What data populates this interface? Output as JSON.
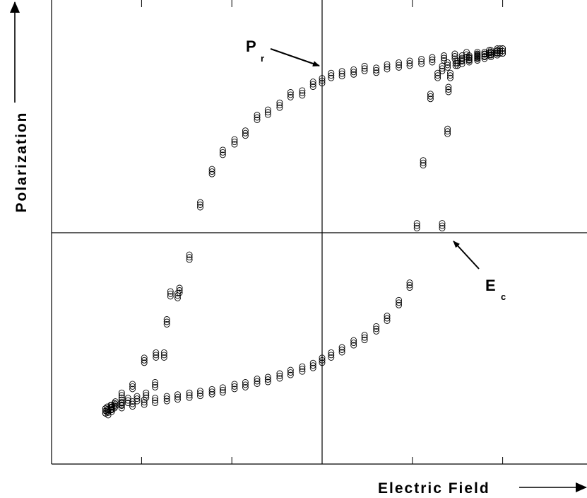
{
  "chart_data": {
    "type": "scatter",
    "title": "",
    "xlabel": "Electric Field",
    "ylabel": "Polarization",
    "xlim": [
      -3,
      3
    ],
    "ylim": [
      -1.3,
      1.2
    ],
    "grid": false,
    "legend": "none",
    "marker": "open-circle",
    "colors": {
      "marker": "#000000",
      "axes": "#000000",
      "background": "#ffffff"
    },
    "annotations": [
      {
        "letter": "P",
        "sub": "r",
        "target": [
          0,
          0.88
        ]
      },
      {
        "letter": "E",
        "sub": "c",
        "target": [
          1.33,
          0
        ]
      }
    ],
    "series": [
      {
        "name": "",
        "branch": "upper",
        "x": [
          -2.4,
          -2.37,
          -2.33,
          -2.29,
          -2.22,
          -2.1,
          -1.97,
          -1.84,
          -1.72,
          -1.6,
          -1.47,
          -1.35,
          -1.22,
          -1.1,
          -0.97,
          -0.85,
          -0.72,
          -0.6,
          -0.47,
          -0.35,
          -0.22,
          -0.1,
          0.0,
          0.1,
          0.22,
          0.35,
          0.47,
          0.6,
          0.72,
          0.85,
          0.97,
          1.1,
          1.22,
          1.35,
          1.47,
          1.6,
          1.72,
          1.85,
          1.97,
          2.0,
          1.94,
          1.87,
          1.8,
          1.72,
          1.63,
          1.55,
          1.5,
          1.42,
          1.4,
          1.39,
          1.33
        ],
        "y": [
          -1.02,
          -1.03,
          -1.01,
          -0.98,
          -0.93,
          -0.88,
          -0.73,
          -0.7,
          -0.51,
          -0.36,
          -0.14,
          0.16,
          0.35,
          0.46,
          0.52,
          0.57,
          0.66,
          0.69,
          0.73,
          0.79,
          0.8,
          0.85,
          0.87,
          0.9,
          0.91,
          0.92,
          0.94,
          0.93,
          0.95,
          0.96,
          0.97,
          0.98,
          0.99,
          1.0,
          1.01,
          1.02,
          1.02,
          1.03,
          1.04,
          1.04,
          1.04,
          1.03,
          1.02,
          1.01,
          1.0,
          1.0,
          0.97,
          0.9,
          0.82,
          0.58,
          0.04
        ]
      },
      {
        "name": "",
        "branch": "lower",
        "x": [
          2.0,
          1.94,
          1.87,
          1.8,
          1.72,
          1.63,
          1.55,
          1.48,
          1.39,
          1.33,
          1.28,
          1.2,
          1.12,
          1.05,
          0.97,
          0.85,
          0.72,
          0.6,
          0.47,
          0.35,
          0.22,
          0.1,
          0.0,
          -0.1,
          -0.22,
          -0.35,
          -0.47,
          -0.6,
          -0.72,
          -0.85,
          -0.97,
          -1.1,
          -1.22,
          -1.35,
          -1.47,
          -1.6,
          -1.72,
          -1.85,
          -1.97,
          -2.1,
          -2.22,
          -2.33,
          -2.4,
          -2.38,
          -2.34,
          -2.3,
          -2.22,
          -2.15,
          -2.05,
          -1.95,
          -1.85,
          -1.75,
          -1.68,
          -1.58
        ],
        "y": [
          1.04,
          1.03,
          1.02,
          1.01,
          1.0,
          0.99,
          0.98,
          0.97,
          0.96,
          0.94,
          0.9,
          0.78,
          0.4,
          0.04,
          -0.3,
          -0.4,
          -0.49,
          -0.55,
          -0.6,
          -0.63,
          -0.67,
          -0.7,
          -0.73,
          -0.76,
          -0.78,
          -0.8,
          -0.82,
          -0.84,
          -0.85,
          -0.87,
          -0.88,
          -0.9,
          -0.91,
          -0.92,
          -0.93,
          -0.94,
          -0.95,
          -0.96,
          -0.97,
          -0.98,
          -0.99,
          -1.0,
          -1.02,
          -1.01,
          -1.0,
          -0.99,
          -0.97,
          -0.96,
          -0.95,
          -0.93,
          -0.87,
          -0.7,
          -0.35,
          -0.33
        ]
      }
    ]
  }
}
